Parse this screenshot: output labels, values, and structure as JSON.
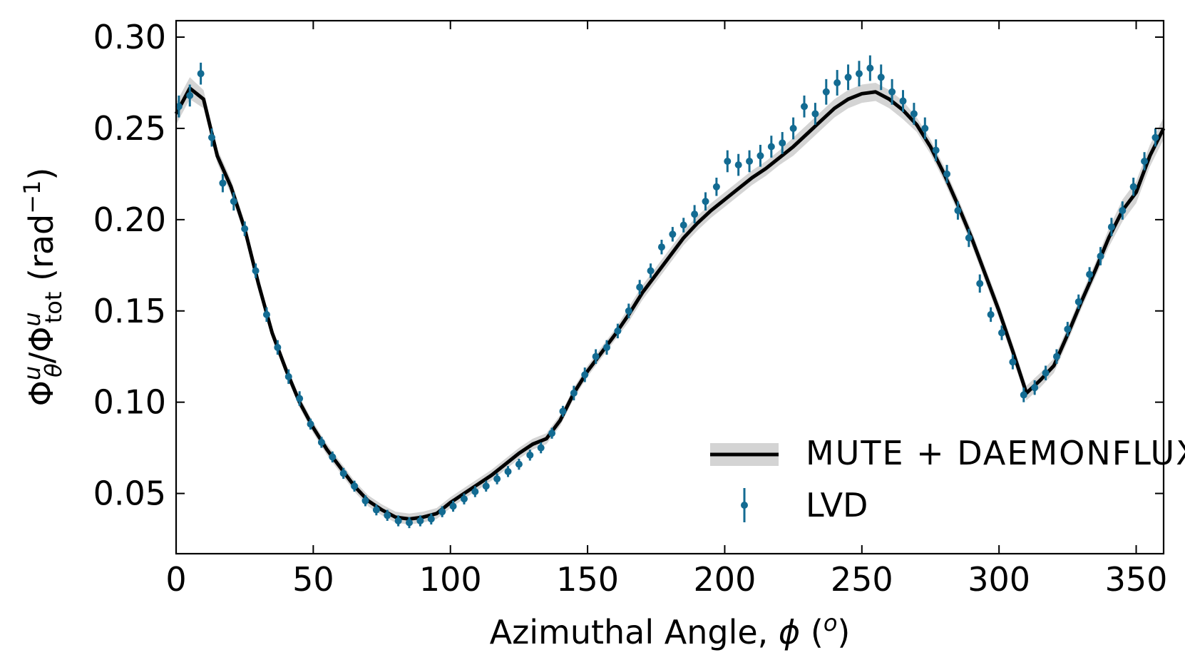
{
  "chart_data": {
    "type": "line",
    "xlabel": [
      "Azimuthal Angle, ",
      "ϕ",
      " (",
      "o",
      ")"
    ],
    "ylabel": [
      "Φ",
      "u",
      "θ",
      "/Φ",
      "u",
      "tot",
      " (rad",
      "−1",
      ")"
    ],
    "xlim": [
      0,
      360
    ],
    "ylim": [
      0.017,
      0.309
    ],
    "xticks": [
      0,
      50,
      100,
      150,
      200,
      250,
      300,
      350
    ],
    "yticks": [
      0.05,
      {
        "value": 0.1,
        "label": "0.10"
      },
      0.15,
      {
        "value": 0.2,
        "label": "0.20"
      },
      0.25,
      {
        "value": 0.3,
        "label": "0.30"
      }
    ],
    "legend": "lower right",
    "series": [
      {
        "name": "MUTE + DAEMONFLUX",
        "color": "#000000",
        "band_color": "#d4d4d4",
        "x": [
          0,
          5,
          10,
          15,
          20,
          25,
          30,
          35,
          40,
          45,
          50,
          55,
          60,
          65,
          70,
          75,
          80,
          85,
          90,
          95,
          100,
          105,
          110,
          115,
          120,
          125,
          130,
          135,
          140,
          145,
          150,
          155,
          160,
          165,
          170,
          175,
          180,
          185,
          190,
          195,
          200,
          205,
          210,
          215,
          220,
          225,
          230,
          235,
          240,
          245,
          250,
          255,
          260,
          265,
          270,
          275,
          280,
          285,
          290,
          295,
          300,
          305,
          310,
          315,
          320,
          325,
          330,
          335,
          340,
          345,
          350,
          355,
          360
        ],
        "values": [
          0.258,
          0.272,
          0.266,
          0.235,
          0.218,
          0.195,
          0.165,
          0.138,
          0.118,
          0.1,
          0.086,
          0.074,
          0.064,
          0.054,
          0.046,
          0.041,
          0.037,
          0.036,
          0.037,
          0.039,
          0.045,
          0.05,
          0.055,
          0.06,
          0.066,
          0.072,
          0.077,
          0.08,
          0.09,
          0.105,
          0.117,
          0.127,
          0.137,
          0.148,
          0.16,
          0.17,
          0.18,
          0.19,
          0.198,
          0.205,
          0.211,
          0.217,
          0.223,
          0.228,
          0.234,
          0.24,
          0.247,
          0.254,
          0.261,
          0.266,
          0.269,
          0.27,
          0.266,
          0.26,
          0.252,
          0.24,
          0.225,
          0.208,
          0.19,
          0.17,
          0.15,
          0.128,
          0.105,
          0.112,
          0.12,
          0.137,
          0.155,
          0.172,
          0.19,
          0.205,
          0.215,
          0.235,
          0.25
        ],
        "errors": [
          0.006,
          0.006,
          0.005,
          0.004,
          0.004,
          0.004,
          0.004,
          0.003,
          0.003,
          0.003,
          0.003,
          0.003,
          0.003,
          0.003,
          0.003,
          0.003,
          0.003,
          0.003,
          0.003,
          0.003,
          0.003,
          0.003,
          0.003,
          0.003,
          0.003,
          0.003,
          0.003,
          0.003,
          0.003,
          0.003,
          0.003,
          0.003,
          0.003,
          0.004,
          0.004,
          0.004,
          0.004,
          0.004,
          0.004,
          0.004,
          0.004,
          0.004,
          0.004,
          0.004,
          0.004,
          0.005,
          0.005,
          0.005,
          0.005,
          0.005,
          0.005,
          0.005,
          0.005,
          0.005,
          0.004,
          0.004,
          0.004,
          0.004,
          0.004,
          0.004,
          0.004,
          0.004,
          0.004,
          0.004,
          0.004,
          0.004,
          0.004,
          0.004,
          0.005,
          0.006,
          0.006,
          0.006,
          0.006
        ]
      },
      {
        "name": "LVD",
        "color": "#136b92",
        "x": [
          1,
          5,
          9,
          13,
          17,
          21,
          25,
          29,
          33,
          37,
          41,
          45,
          49,
          53,
          57,
          61,
          65,
          69,
          73,
          77,
          81,
          85,
          89,
          93,
          97,
          101,
          105,
          109,
          113,
          117,
          121,
          125,
          129,
          133,
          137,
          141,
          145,
          149,
          153,
          157,
          161,
          165,
          169,
          173,
          177,
          181,
          185,
          189,
          193,
          197,
          201,
          205,
          209,
          213,
          217,
          221,
          225,
          229,
          233,
          237,
          241,
          245,
          249,
          253,
          257,
          261,
          265,
          269,
          273,
          277,
          281,
          285,
          289,
          293,
          297,
          301,
          305,
          309,
          313,
          317,
          321,
          325,
          329,
          333,
          337,
          341,
          345,
          349,
          353,
          357
        ],
        "values": [
          0.262,
          0.268,
          0.28,
          0.245,
          0.22,
          0.21,
          0.195,
          0.172,
          0.148,
          0.13,
          0.114,
          0.102,
          0.088,
          0.078,
          0.07,
          0.061,
          0.054,
          0.046,
          0.041,
          0.038,
          0.035,
          0.034,
          0.035,
          0.036,
          0.04,
          0.043,
          0.047,
          0.051,
          0.054,
          0.058,
          0.062,
          0.066,
          0.071,
          0.075,
          0.083,
          0.095,
          0.105,
          0.115,
          0.125,
          0.13,
          0.139,
          0.15,
          0.163,
          0.172,
          0.185,
          0.192,
          0.197,
          0.203,
          0.21,
          0.218,
          0.232,
          0.23,
          0.232,
          0.235,
          0.24,
          0.242,
          0.25,
          0.262,
          0.258,
          0.27,
          0.275,
          0.278,
          0.28,
          0.283,
          0.278,
          0.27,
          0.265,
          0.258,
          0.25,
          0.238,
          0.225,
          0.205,
          0.19,
          0.165,
          0.148,
          0.138,
          0.122,
          0.104,
          0.108,
          0.116,
          0.125,
          0.14,
          0.155,
          0.17,
          0.18,
          0.196,
          0.205,
          0.218,
          0.232,
          0.245
        ],
        "errors": [
          0.006,
          0.006,
          0.006,
          0.005,
          0.005,
          0.005,
          0.004,
          0.004,
          0.004,
          0.004,
          0.004,
          0.004,
          0.003,
          0.003,
          0.003,
          0.003,
          0.003,
          0.003,
          0.003,
          0.003,
          0.003,
          0.003,
          0.003,
          0.003,
          0.003,
          0.003,
          0.003,
          0.003,
          0.003,
          0.003,
          0.003,
          0.003,
          0.003,
          0.003,
          0.003,
          0.003,
          0.004,
          0.004,
          0.004,
          0.004,
          0.004,
          0.004,
          0.004,
          0.004,
          0.004,
          0.004,
          0.004,
          0.005,
          0.005,
          0.005,
          0.006,
          0.006,
          0.006,
          0.006,
          0.006,
          0.006,
          0.006,
          0.006,
          0.006,
          0.007,
          0.007,
          0.007,
          0.007,
          0.007,
          0.007,
          0.007,
          0.006,
          0.006,
          0.006,
          0.006,
          0.005,
          0.005,
          0.005,
          0.005,
          0.004,
          0.004,
          0.004,
          0.004,
          0.004,
          0.004,
          0.004,
          0.004,
          0.004,
          0.004,
          0.005,
          0.005,
          0.005,
          0.005,
          0.005,
          0.005
        ]
      }
    ]
  }
}
